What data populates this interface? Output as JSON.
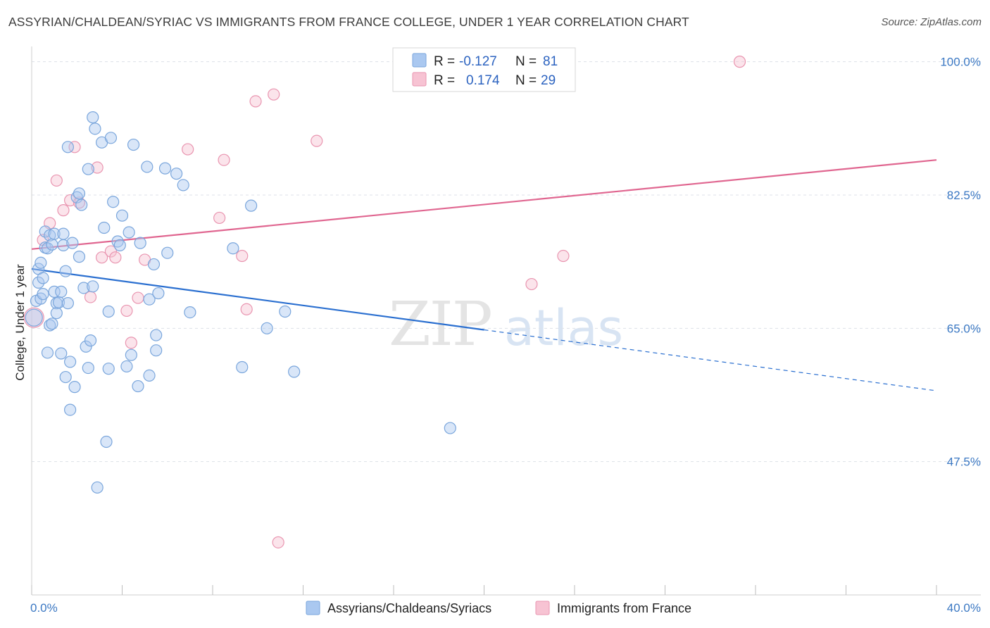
{
  "title": "ASSYRIAN/CHALDEAN/SYRIAC VS IMMIGRANTS FROM FRANCE COLLEGE, UNDER 1 YEAR CORRELATION CHART",
  "source": "Source: ZipAtlas.com",
  "watermark": {
    "zip": "ZIP",
    "atlas": "atlas"
  },
  "colors": {
    "blue_fill": "#aac8f0",
    "blue_stroke": "#7aa6dc",
    "blue_line": "#2a6fd0",
    "pink_fill": "#f7c3d3",
    "pink_stroke": "#e995b0",
    "pink_line": "#e06690",
    "axis_label": "#3b78c3",
    "grid": "#dde1e8"
  },
  "legend": {
    "rows": [
      {
        "r_label": "R =",
        "r_value": "-0.127",
        "n_label": "N =",
        "n_value": "81"
      },
      {
        "r_label": "R =",
        "r_value": "0.174",
        "n_label": "N =",
        "n_value": "29"
      }
    ]
  },
  "chart_data": {
    "type": "scatter",
    "title": "ASSYRIAN/CHALDEAN/SYRIAC VS IMMIGRANTS FROM FRANCE COLLEGE, UNDER 1 YEAR CORRELATION CHART",
    "xlabel": "",
    "ylabel": "College, Under 1 year",
    "xlim": [
      0,
      40
    ],
    "ylim": [
      30,
      102
    ],
    "x_tick_labels": [
      "0.0%",
      "40.0%"
    ],
    "y_ticks": [
      47.5,
      65.0,
      82.5,
      100.0
    ],
    "y_tick_labels": [
      "47.5%",
      "65.0%",
      "82.5%",
      "100.0%"
    ],
    "grid": true,
    "legend_position": "top-center",
    "series": [
      {
        "name": "Assyrians/Chaldeans/Syriacs",
        "r": -0.127,
        "n": 81,
        "trend": {
          "x0": 0,
          "y0": 72.8,
          "x1": 20,
          "y1": 64.8,
          "dashed_to_x": 40,
          "dashed_to_y": 56.8
        },
        "points": [
          [
            0.1,
            66.4
          ],
          [
            0.2,
            68.6
          ],
          [
            0.3,
            71.0
          ],
          [
            0.3,
            72.8
          ],
          [
            0.4,
            73.6
          ],
          [
            0.4,
            68.9
          ],
          [
            0.5,
            71.6
          ],
          [
            0.5,
            69.5
          ],
          [
            0.6,
            77.7
          ],
          [
            0.6,
            75.6
          ],
          [
            0.7,
            61.8
          ],
          [
            0.7,
            75.5
          ],
          [
            0.8,
            65.4
          ],
          [
            0.8,
            77.2
          ],
          [
            0.9,
            76.0
          ],
          [
            0.9,
            65.6
          ],
          [
            1.0,
            69.8
          ],
          [
            1.0,
            77.4
          ],
          [
            1.1,
            68.3
          ],
          [
            1.1,
            67.0
          ],
          [
            1.2,
            68.4
          ],
          [
            1.3,
            61.7
          ],
          [
            1.3,
            69.8
          ],
          [
            1.4,
            77.4
          ],
          [
            1.4,
            75.9
          ],
          [
            1.5,
            72.5
          ],
          [
            1.5,
            58.6
          ],
          [
            1.6,
            88.8
          ],
          [
            1.6,
            68.3
          ],
          [
            1.7,
            60.6
          ],
          [
            1.7,
            54.3
          ],
          [
            1.8,
            76.2
          ],
          [
            1.9,
            57.3
          ],
          [
            2.0,
            82.2
          ],
          [
            2.1,
            74.4
          ],
          [
            2.1,
            82.7
          ],
          [
            2.2,
            81.2
          ],
          [
            2.3,
            70.3
          ],
          [
            2.4,
            62.6
          ],
          [
            2.5,
            85.9
          ],
          [
            2.5,
            59.8
          ],
          [
            2.6,
            63.4
          ],
          [
            2.7,
            70.5
          ],
          [
            2.7,
            92.7
          ],
          [
            2.8,
            91.2
          ],
          [
            2.9,
            44.1
          ],
          [
            3.1,
            89.4
          ],
          [
            3.2,
            78.2
          ],
          [
            3.3,
            50.1
          ],
          [
            3.4,
            67.2
          ],
          [
            3.4,
            59.7
          ],
          [
            3.5,
            90.0
          ],
          [
            3.6,
            81.6
          ],
          [
            3.8,
            76.4
          ],
          [
            3.9,
            75.9
          ],
          [
            4.0,
            79.8
          ],
          [
            4.2,
            60.0
          ],
          [
            4.3,
            77.6
          ],
          [
            4.4,
            61.5
          ],
          [
            4.5,
            89.1
          ],
          [
            4.7,
            57.4
          ],
          [
            4.8,
            76.2
          ],
          [
            5.1,
            86.2
          ],
          [
            5.2,
            68.8
          ],
          [
            5.2,
            58.8
          ],
          [
            5.4,
            73.4
          ],
          [
            5.5,
            64.1
          ],
          [
            5.5,
            62.1
          ],
          [
            5.6,
            69.6
          ],
          [
            5.9,
            86.0
          ],
          [
            6.0,
            74.9
          ],
          [
            6.4,
            85.3
          ],
          [
            6.7,
            83.8
          ],
          [
            7.0,
            67.1
          ],
          [
            8.9,
            75.5
          ],
          [
            9.3,
            59.9
          ],
          [
            9.7,
            81.1
          ],
          [
            10.4,
            65.0
          ],
          [
            11.2,
            67.2
          ],
          [
            11.6,
            59.3
          ],
          [
            18.5,
            51.9
          ]
        ]
      },
      {
        "name": "Immigrants from France",
        "r": 0.174,
        "n": 29,
        "trend": {
          "x0": 0,
          "y0": 75.4,
          "x1": 40,
          "y1": 87.1
        },
        "points": [
          [
            0.1,
            66.4
          ],
          [
            0.5,
            76.6
          ],
          [
            0.8,
            78.8
          ],
          [
            1.1,
            84.4
          ],
          [
            1.4,
            80.5
          ],
          [
            1.7,
            81.8
          ],
          [
            1.9,
            88.8
          ],
          [
            2.1,
            81.5
          ],
          [
            2.6,
            69.1
          ],
          [
            2.9,
            86.1
          ],
          [
            3.1,
            74.3
          ],
          [
            3.5,
            75.1
          ],
          [
            3.7,
            74.3
          ],
          [
            4.2,
            67.3
          ],
          [
            4.4,
            63.1
          ],
          [
            4.7,
            69.0
          ],
          [
            5.0,
            74.0
          ],
          [
            6.9,
            88.5
          ],
          [
            8.3,
            79.5
          ],
          [
            8.5,
            87.1
          ],
          [
            9.3,
            74.5
          ],
          [
            9.5,
            67.5
          ],
          [
            9.9,
            94.8
          ],
          [
            10.7,
            95.7
          ],
          [
            10.9,
            36.9
          ],
          [
            12.6,
            89.6
          ],
          [
            22.1,
            70.8
          ],
          [
            23.5,
            74.5
          ],
          [
            31.3,
            100.0
          ]
        ]
      }
    ]
  }
}
